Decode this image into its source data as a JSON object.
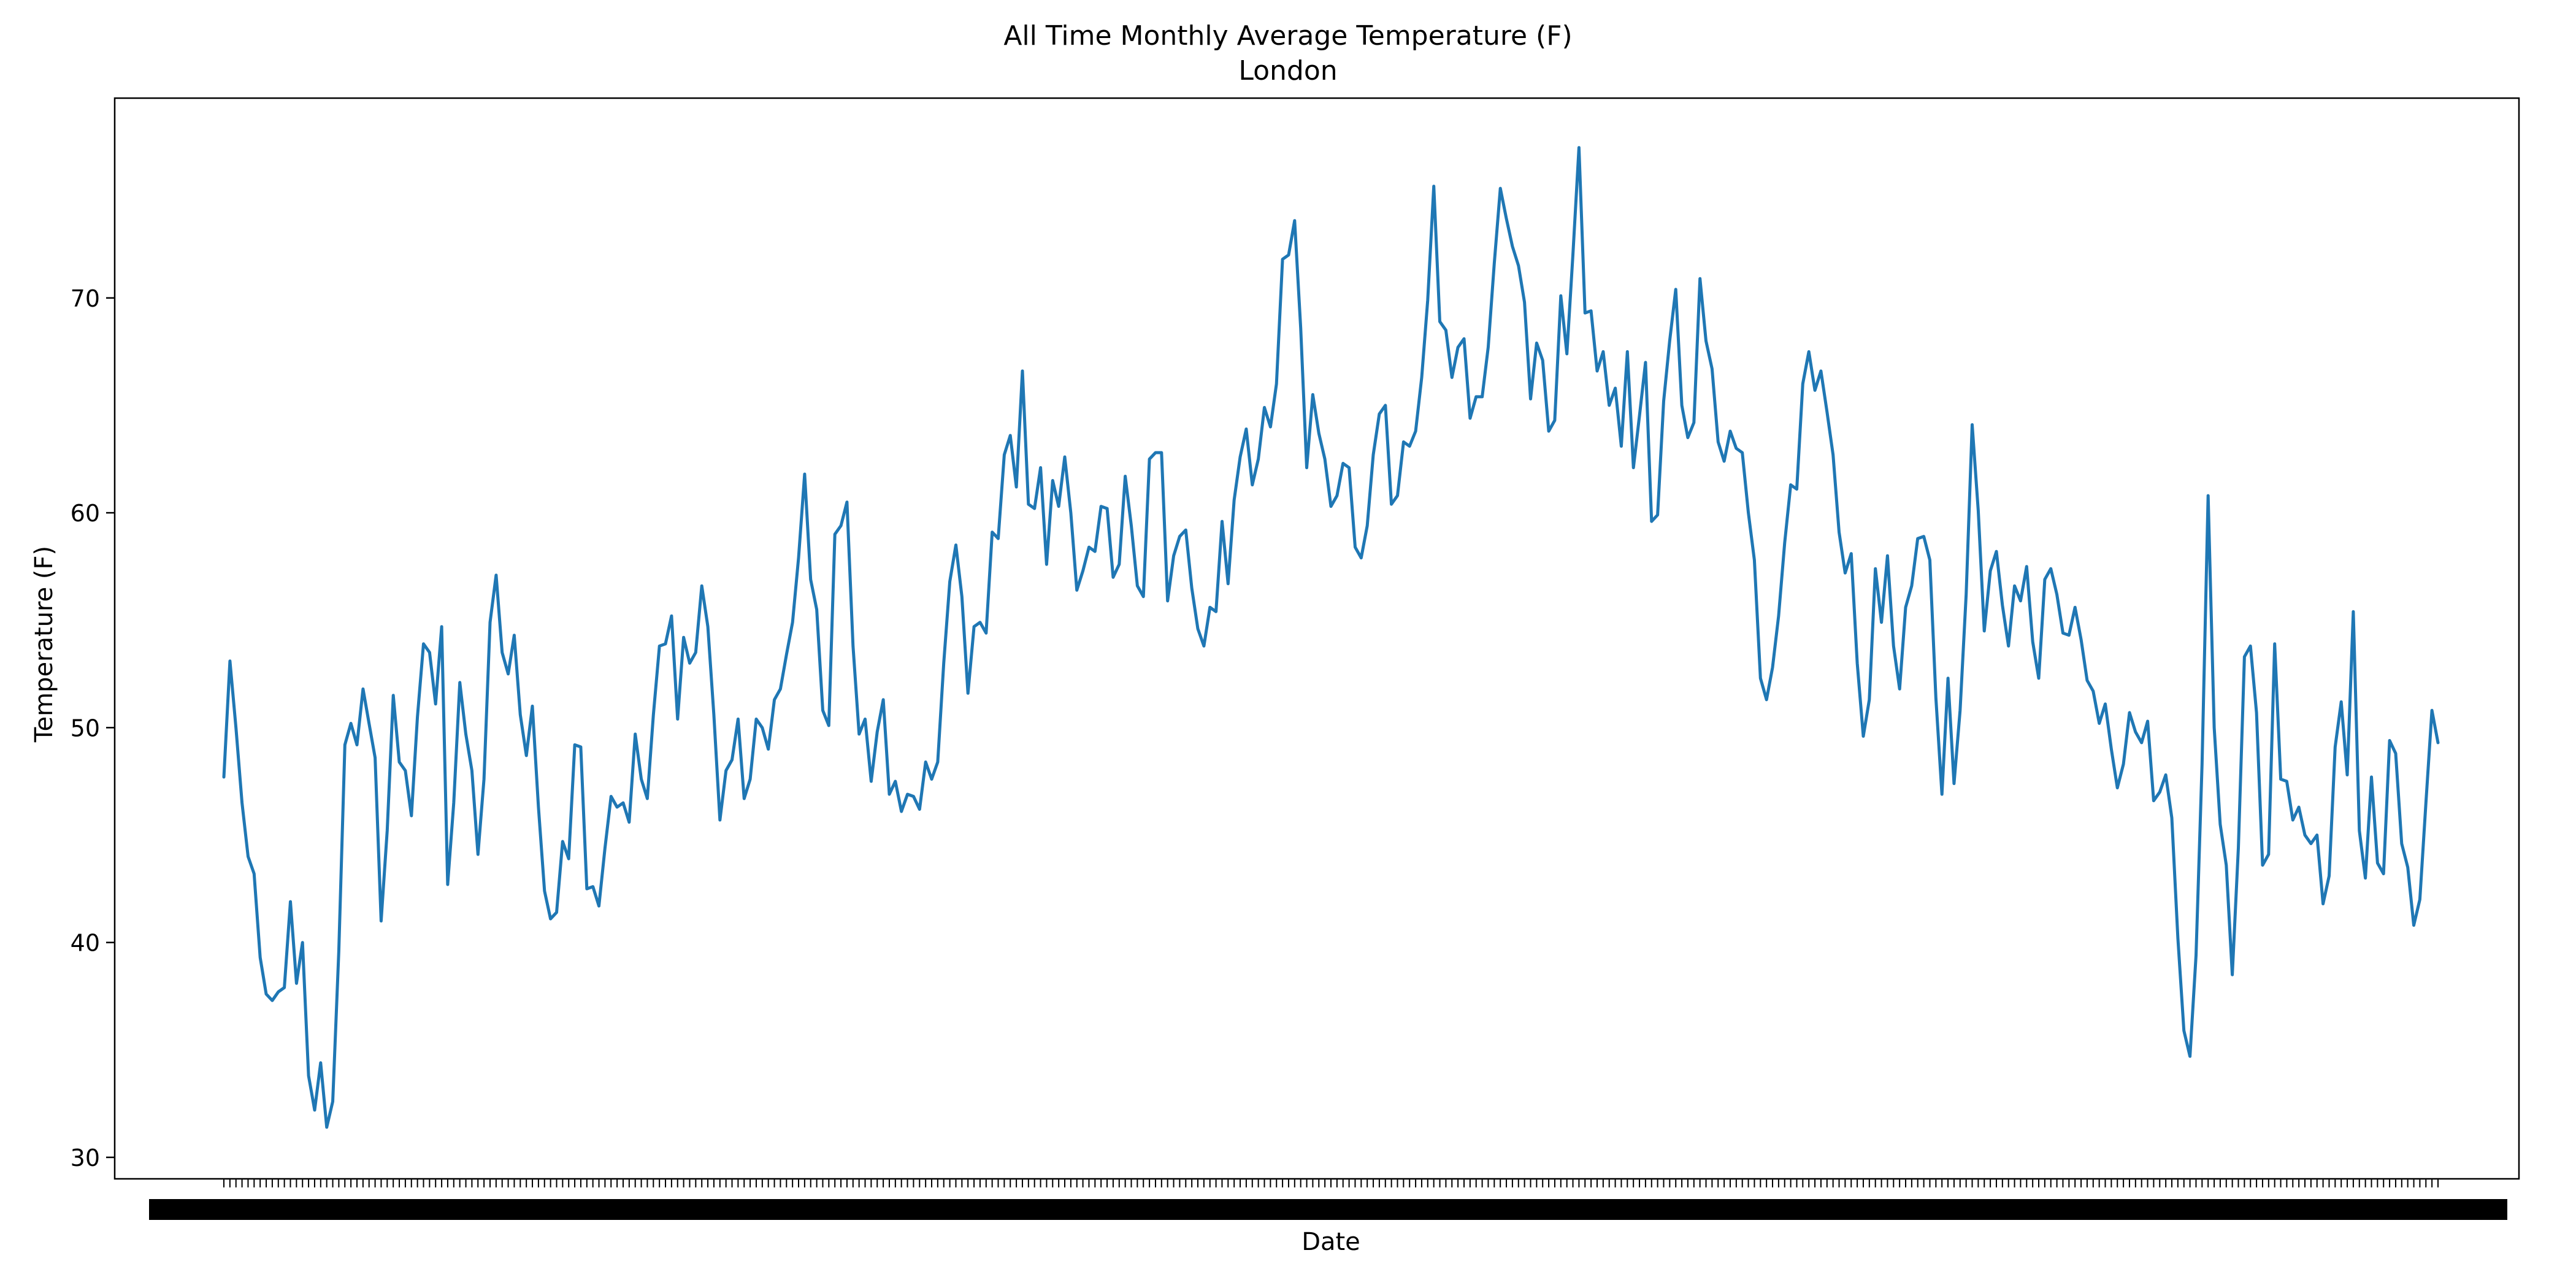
{
  "chart_data": {
    "type": "line",
    "title": "All Time Monthly Average Temperature (F)",
    "subtitle": "London",
    "xlabel": "Date",
    "ylabel": "Temperature (F)",
    "ylim": [
      29,
      79.3
    ],
    "yticks": [
      30,
      40,
      50,
      60,
      70
    ],
    "grid": false,
    "legend": "none",
    "line_color": "#1f77b4",
    "series": [
      {
        "values": [
          47.7,
          53.1,
          50.0,
          46.5,
          44.0,
          43.2,
          39.3,
          37.6,
          37.3,
          37.7,
          37.9,
          41.9,
          38.1,
          40.0,
          33.8,
          32.2,
          34.4,
          31.4,
          32.6,
          39.6,
          49.2,
          50.2,
          49.2,
          51.8,
          50.2,
          48.6,
          41.0,
          45.2,
          51.5,
          48.4,
          48.0,
          45.9,
          50.5,
          53.9,
          53.5,
          51.1,
          54.7,
          42.7,
          46.5,
          52.1,
          49.7,
          48.0,
          44.1,
          47.6,
          54.9,
          57.1,
          53.5,
          52.5,
          54.3,
          50.6,
          48.7,
          51.0,
          46.3,
          42.4,
          41.1,
          41.4,
          44.7,
          43.9,
          49.2,
          49.1,
          42.5,
          42.6,
          41.7,
          44.4,
          46.8,
          46.3,
          46.5,
          45.6,
          49.7,
          47.6,
          46.7,
          50.6,
          53.8,
          53.9,
          55.2,
          50.4,
          54.2,
          53.0,
          53.5,
          56.6,
          54.7,
          50.6,
          45.7,
          48.0,
          48.5,
          50.4,
          46.7,
          47.6,
          50.4,
          50.0,
          49.0,
          51.3,
          51.8,
          53.4,
          54.9,
          57.9,
          61.8,
          56.9,
          55.5,
          50.8,
          50.1,
          59.0,
          59.4,
          60.5,
          53.8,
          49.7,
          50.4,
          47.5,
          49.8,
          51.3,
          46.9,
          47.5,
          46.1,
          46.9,
          46.8,
          46.2,
          48.4,
          47.6,
          48.4,
          53.0,
          56.8,
          58.5,
          56.1,
          51.6,
          54.7,
          54.9,
          54.4,
          59.1,
          58.8,
          62.7,
          63.6,
          61.2,
          66.6,
          60.4,
          60.2,
          62.1,
          57.6,
          61.5,
          60.3,
          62.6,
          60.0,
          56.4,
          57.3,
          58.4,
          58.2,
          60.3,
          60.2,
          57.0,
          57.6,
          61.7,
          59.4,
          56.6,
          56.1,
          62.5,
          62.8,
          62.8,
          55.9,
          58.0,
          58.9,
          59.2,
          56.5,
          54.6,
          53.8,
          55.6,
          55.4,
          59.6,
          56.7,
          60.6,
          62.6,
          63.9,
          61.3,
          62.5,
          64.9,
          64.0,
          66.0,
          71.8,
          72.0,
          73.6,
          68.6,
          62.1,
          65.5,
          63.7,
          62.5,
          60.3,
          60.8,
          62.3,
          62.1,
          58.4,
          57.9,
          59.4,
          62.7,
          64.6,
          65.0,
          60.4,
          60.8,
          63.3,
          63.1,
          63.8,
          66.3,
          69.9,
          75.2,
          68.9,
          68.5,
          66.3,
          67.7,
          68.1,
          64.4,
          65.4,
          65.4,
          67.7,
          71.6,
          75.1,
          73.7,
          72.4,
          71.5,
          69.8,
          65.3,
          67.9,
          67.1,
          63.8,
          64.3,
          70.1,
          67.4,
          72.0,
          77.0,
          69.3,
          69.4,
          66.6,
          67.5,
          65.0,
          65.8,
          63.1,
          67.5,
          62.1,
          64.5,
          67.0,
          59.6,
          59.9,
          65.2,
          68.0,
          70.4,
          65.0,
          63.5,
          64.2,
          70.9,
          68.0,
          66.7,
          63.3,
          62.4,
          63.8,
          63.0,
          62.8,
          60.0,
          57.8,
          52.3,
          51.3,
          52.8,
          55.2,
          58.6,
          61.3,
          61.1,
          66.0,
          67.5,
          65.7,
          66.6,
          64.7,
          62.7,
          59.1,
          57.2,
          58.1,
          53.0,
          49.6,
          51.3,
          57.4,
          54.9,
          58.0,
          53.8,
          51.8,
          55.6,
          56.6,
          58.8,
          58.9,
          57.8,
          51.4,
          46.9,
          52.3,
          47.4,
          50.8,
          56.2,
          64.1,
          60.1,
          54.5,
          57.3,
          58.2,
          55.7,
          53.8,
          56.6,
          55.9,
          57.5,
          54.0,
          52.3,
          56.9,
          57.4,
          56.2,
          54.4,
          54.3,
          55.6,
          54.1,
          52.2,
          51.7,
          50.2,
          51.1,
          49.0,
          47.2,
          48.3,
          50.7,
          49.8,
          49.3,
          50.3,
          46.6,
          47.0,
          47.8,
          45.8,
          40.2,
          35.9,
          34.7,
          39.4,
          48.3,
          60.8,
          50.0,
          45.5,
          43.6,
          38.5,
          44.4,
          53.3,
          53.8,
          50.7,
          43.6,
          44.1,
          53.9,
          47.6,
          47.5,
          45.7,
          46.3,
          45.0,
          44.6,
          45.0,
          41.8,
          43.1,
          49.1,
          51.2,
          47.8,
          55.4,
          45.2,
          43.0,
          47.7,
          43.7,
          43.2,
          49.4,
          48.8,
          44.6,
          43.5,
          40.8,
          42.0,
          46.5,
          50.8,
          49.3
        ]
      }
    ]
  }
}
